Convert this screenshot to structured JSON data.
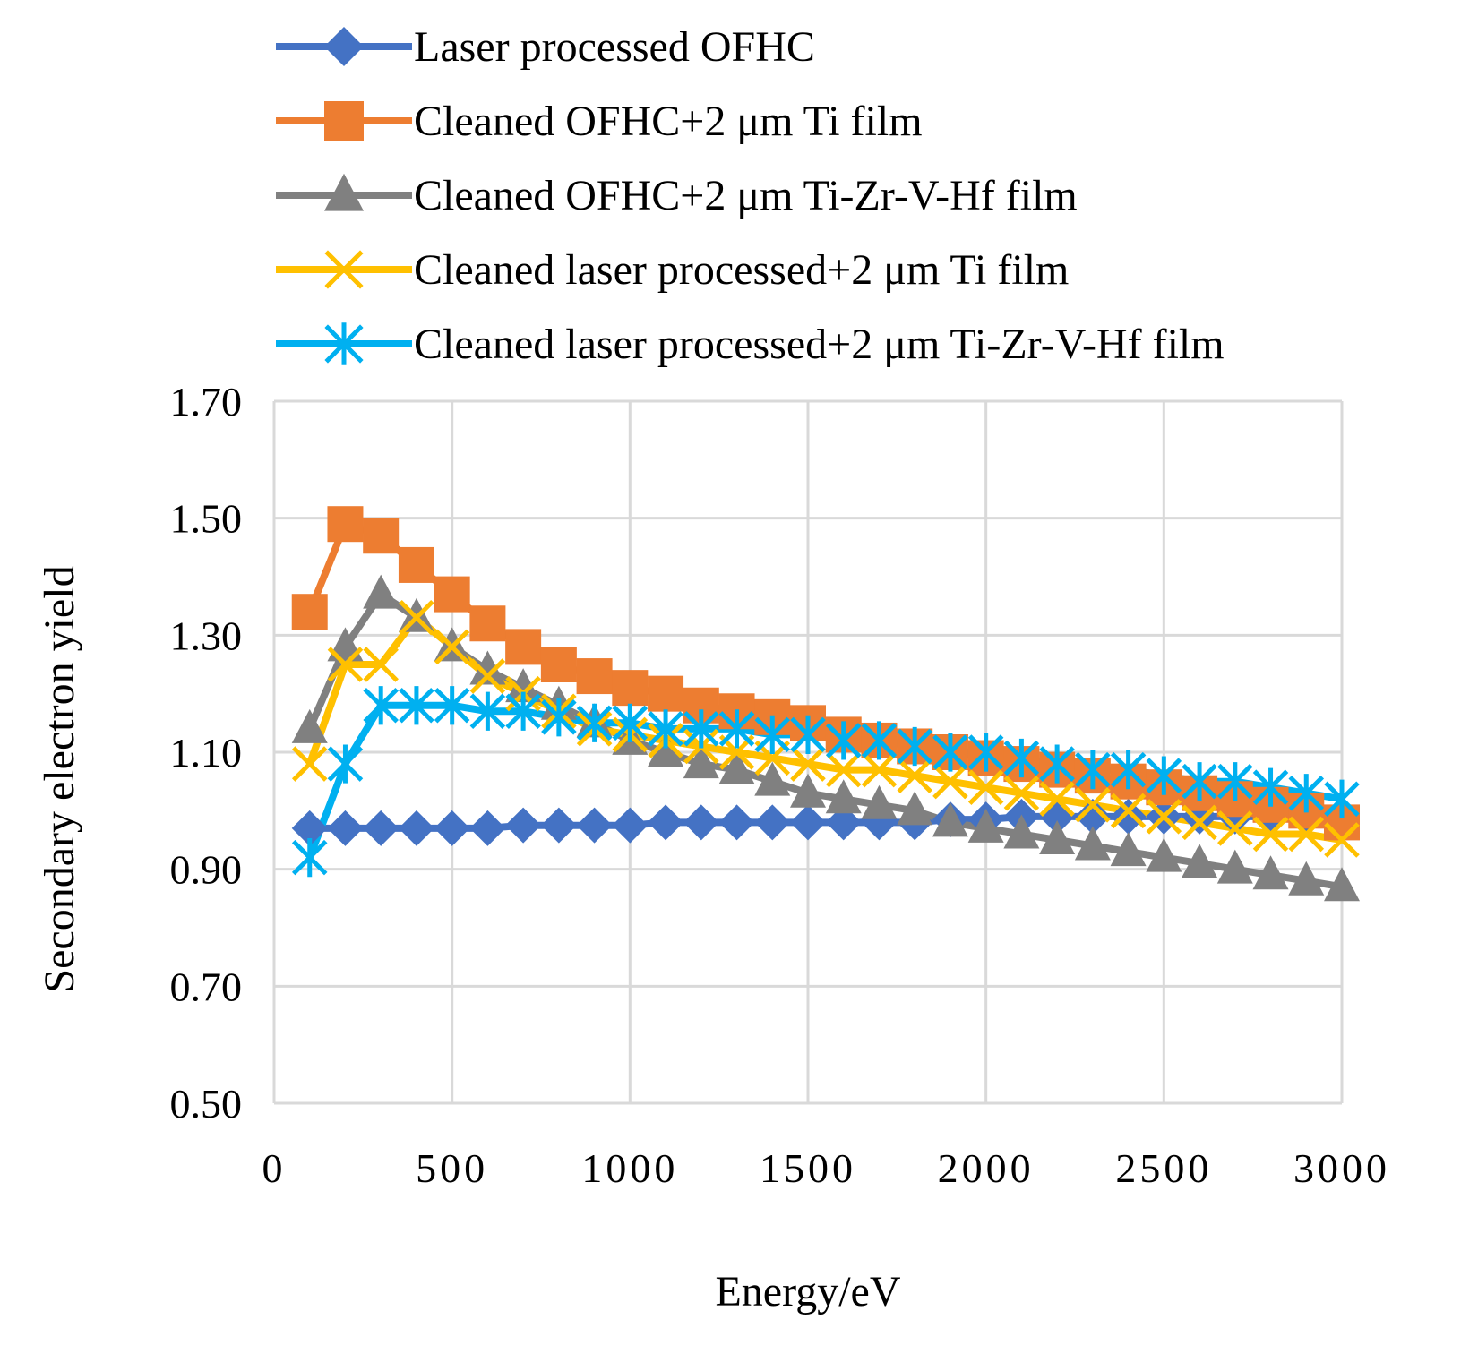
{
  "chart_data": {
    "type": "line",
    "xlabel": "Energy/eV",
    "ylabel": "Secondary electron yield",
    "xlim": [
      0,
      3000
    ],
    "ylim": [
      0.5,
      1.7
    ],
    "x_ticks": [
      "0",
      "500",
      "1000",
      "1500",
      "2000",
      "2500",
      "3000"
    ],
    "y_ticks": [
      "0.50",
      "0.70",
      "0.90",
      "1.10",
      "1.30",
      "1.50",
      "1.70"
    ],
    "grid": true,
    "legend_position": "top",
    "x": [
      100,
      200,
      300,
      400,
      500,
      600,
      700,
      800,
      900,
      1000,
      1100,
      1200,
      1300,
      1400,
      1500,
      1600,
      1700,
      1800,
      1900,
      2000,
      2100,
      2200,
      2300,
      2400,
      2500,
      2600,
      2700,
      2800,
      2900,
      3000
    ],
    "series": [
      {
        "name": "Laser processed OFHC",
        "color": "#4472c4",
        "marker": "diamond",
        "values": [
          0.97,
          0.97,
          0.97,
          0.97,
          0.97,
          0.97,
          0.975,
          0.975,
          0.975,
          0.975,
          0.98,
          0.98,
          0.98,
          0.98,
          0.98,
          0.98,
          0.98,
          0.98,
          0.985,
          0.985,
          0.99,
          0.99,
          0.99,
          0.99,
          0.99,
          0.99,
          0.99,
          0.99,
          0.99,
          0.99
        ]
      },
      {
        "name": "Cleaned OFHC+2 μm Ti film",
        "color": "#ed7d31",
        "marker": "square",
        "values": [
          1.34,
          1.49,
          1.47,
          1.42,
          1.37,
          1.32,
          1.28,
          1.25,
          1.23,
          1.21,
          1.2,
          1.18,
          1.17,
          1.16,
          1.15,
          1.13,
          1.12,
          1.11,
          1.1,
          1.09,
          1.08,
          1.07,
          1.06,
          1.05,
          1.04,
          1.03,
          1.02,
          1.01,
          1.0,
          0.98
        ]
      },
      {
        "name": "Cleaned OFHC+2 μm Ti-Zr-V-Hf film",
        "color": "#808080",
        "marker": "triangle",
        "values": [
          1.14,
          1.28,
          1.37,
          1.33,
          1.28,
          1.24,
          1.21,
          1.18,
          1.15,
          1.12,
          1.1,
          1.08,
          1.07,
          1.05,
          1.03,
          1.02,
          1.01,
          1.0,
          0.98,
          0.97,
          0.96,
          0.95,
          0.94,
          0.93,
          0.92,
          0.91,
          0.9,
          0.89,
          0.88,
          0.87
        ]
      },
      {
        "name": "Cleaned laser processed+2 μm Ti film",
        "color": "#ffc000",
        "marker": "x",
        "values": [
          1.08,
          1.25,
          1.25,
          1.33,
          1.28,
          1.23,
          1.2,
          1.17,
          1.14,
          1.13,
          1.12,
          1.11,
          1.1,
          1.09,
          1.08,
          1.07,
          1.07,
          1.06,
          1.05,
          1.04,
          1.03,
          1.02,
          1.01,
          1.0,
          0.99,
          0.98,
          0.97,
          0.96,
          0.96,
          0.95
        ]
      },
      {
        "name": "Cleaned laser processed+2 μm Ti-Zr-V-Hf film",
        "color": "#00b0f0",
        "marker": "star",
        "values": [
          0.92,
          1.08,
          1.18,
          1.18,
          1.18,
          1.17,
          1.17,
          1.16,
          1.15,
          1.15,
          1.14,
          1.14,
          1.14,
          1.13,
          1.13,
          1.12,
          1.12,
          1.11,
          1.1,
          1.1,
          1.09,
          1.08,
          1.07,
          1.07,
          1.06,
          1.05,
          1.05,
          1.04,
          1.03,
          1.02
        ]
      }
    ]
  }
}
